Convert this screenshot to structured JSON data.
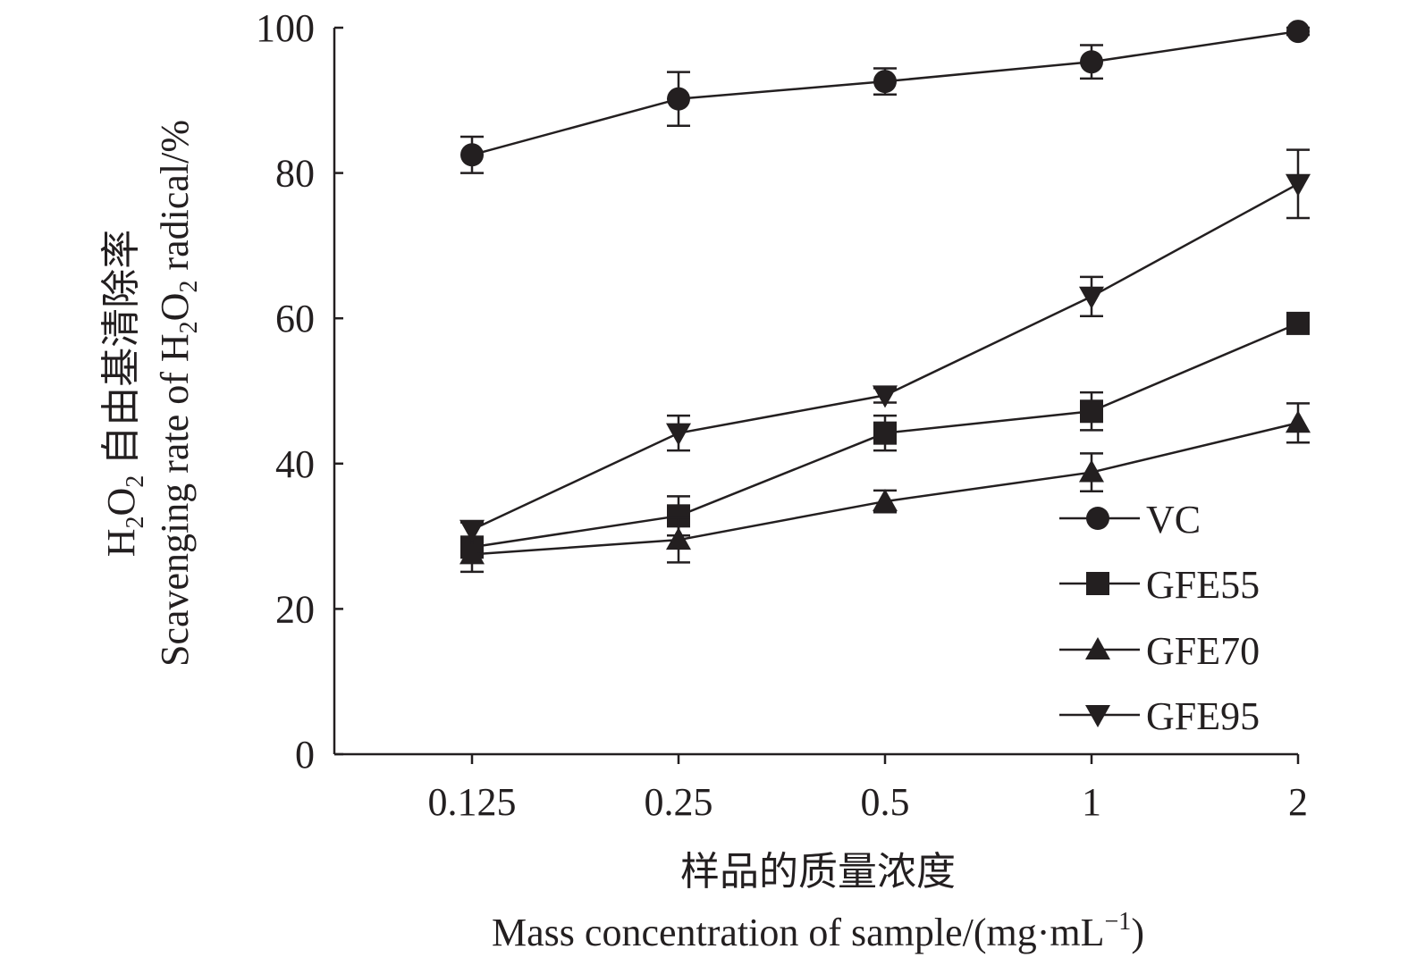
{
  "chart_data": {
    "type": "line",
    "title": "",
    "xlabel_cn": "样品的质量浓度",
    "xlabel_en": "Mass concentration of sample/(mg·mL",
    "xlabel_en_sup": "−1",
    "xlabel_en_end": ")",
    "ylabel_cn": {
      "pre": "H",
      "sub1": "2",
      "mid": "O",
      "sub2": "2",
      "post": " 自由基清除率"
    },
    "ylabel_en": {
      "pre": "Scavenging rate of H",
      "sub1": "2",
      "mid": "O",
      "sub2": "2",
      "post": " radical/%"
    },
    "categories": [
      "0.125",
      "0.25",
      "0.5",
      "1",
      "2"
    ],
    "ylim": [
      0,
      100
    ],
    "yticks": [
      "0",
      "20",
      "40",
      "60",
      "80",
      "100"
    ],
    "grid": false,
    "legend_position": "bottom-right",
    "series": [
      {
        "name": "VC",
        "marker": "circle",
        "values": [
          82.5,
          90.2,
          92.6,
          95.3,
          99.5
        ],
        "errors": [
          2.5,
          3.7,
          1.8,
          2.3,
          0.5
        ]
      },
      {
        "name": "GFE55",
        "marker": "square",
        "values": [
          28.5,
          32.8,
          44.2,
          47.2,
          59.3
        ],
        "errors": [
          1.2,
          2.7,
          2.4,
          2.6,
          1.0
        ]
      },
      {
        "name": "GFE70",
        "marker": "triangle-up",
        "values": [
          27.5,
          29.5,
          34.8,
          38.8,
          45.6
        ],
        "errors": [
          2.4,
          3.1,
          1.5,
          2.6,
          2.7
        ]
      },
      {
        "name": "GFE95",
        "marker": "triangle-down",
        "values": [
          30.9,
          44.2,
          49.4,
          63.0,
          78.5
        ],
        "errors": [
          1.0,
          2.4,
          1.0,
          2.7,
          4.7
        ]
      }
    ],
    "colors": {
      "ink": "#231f20"
    }
  }
}
